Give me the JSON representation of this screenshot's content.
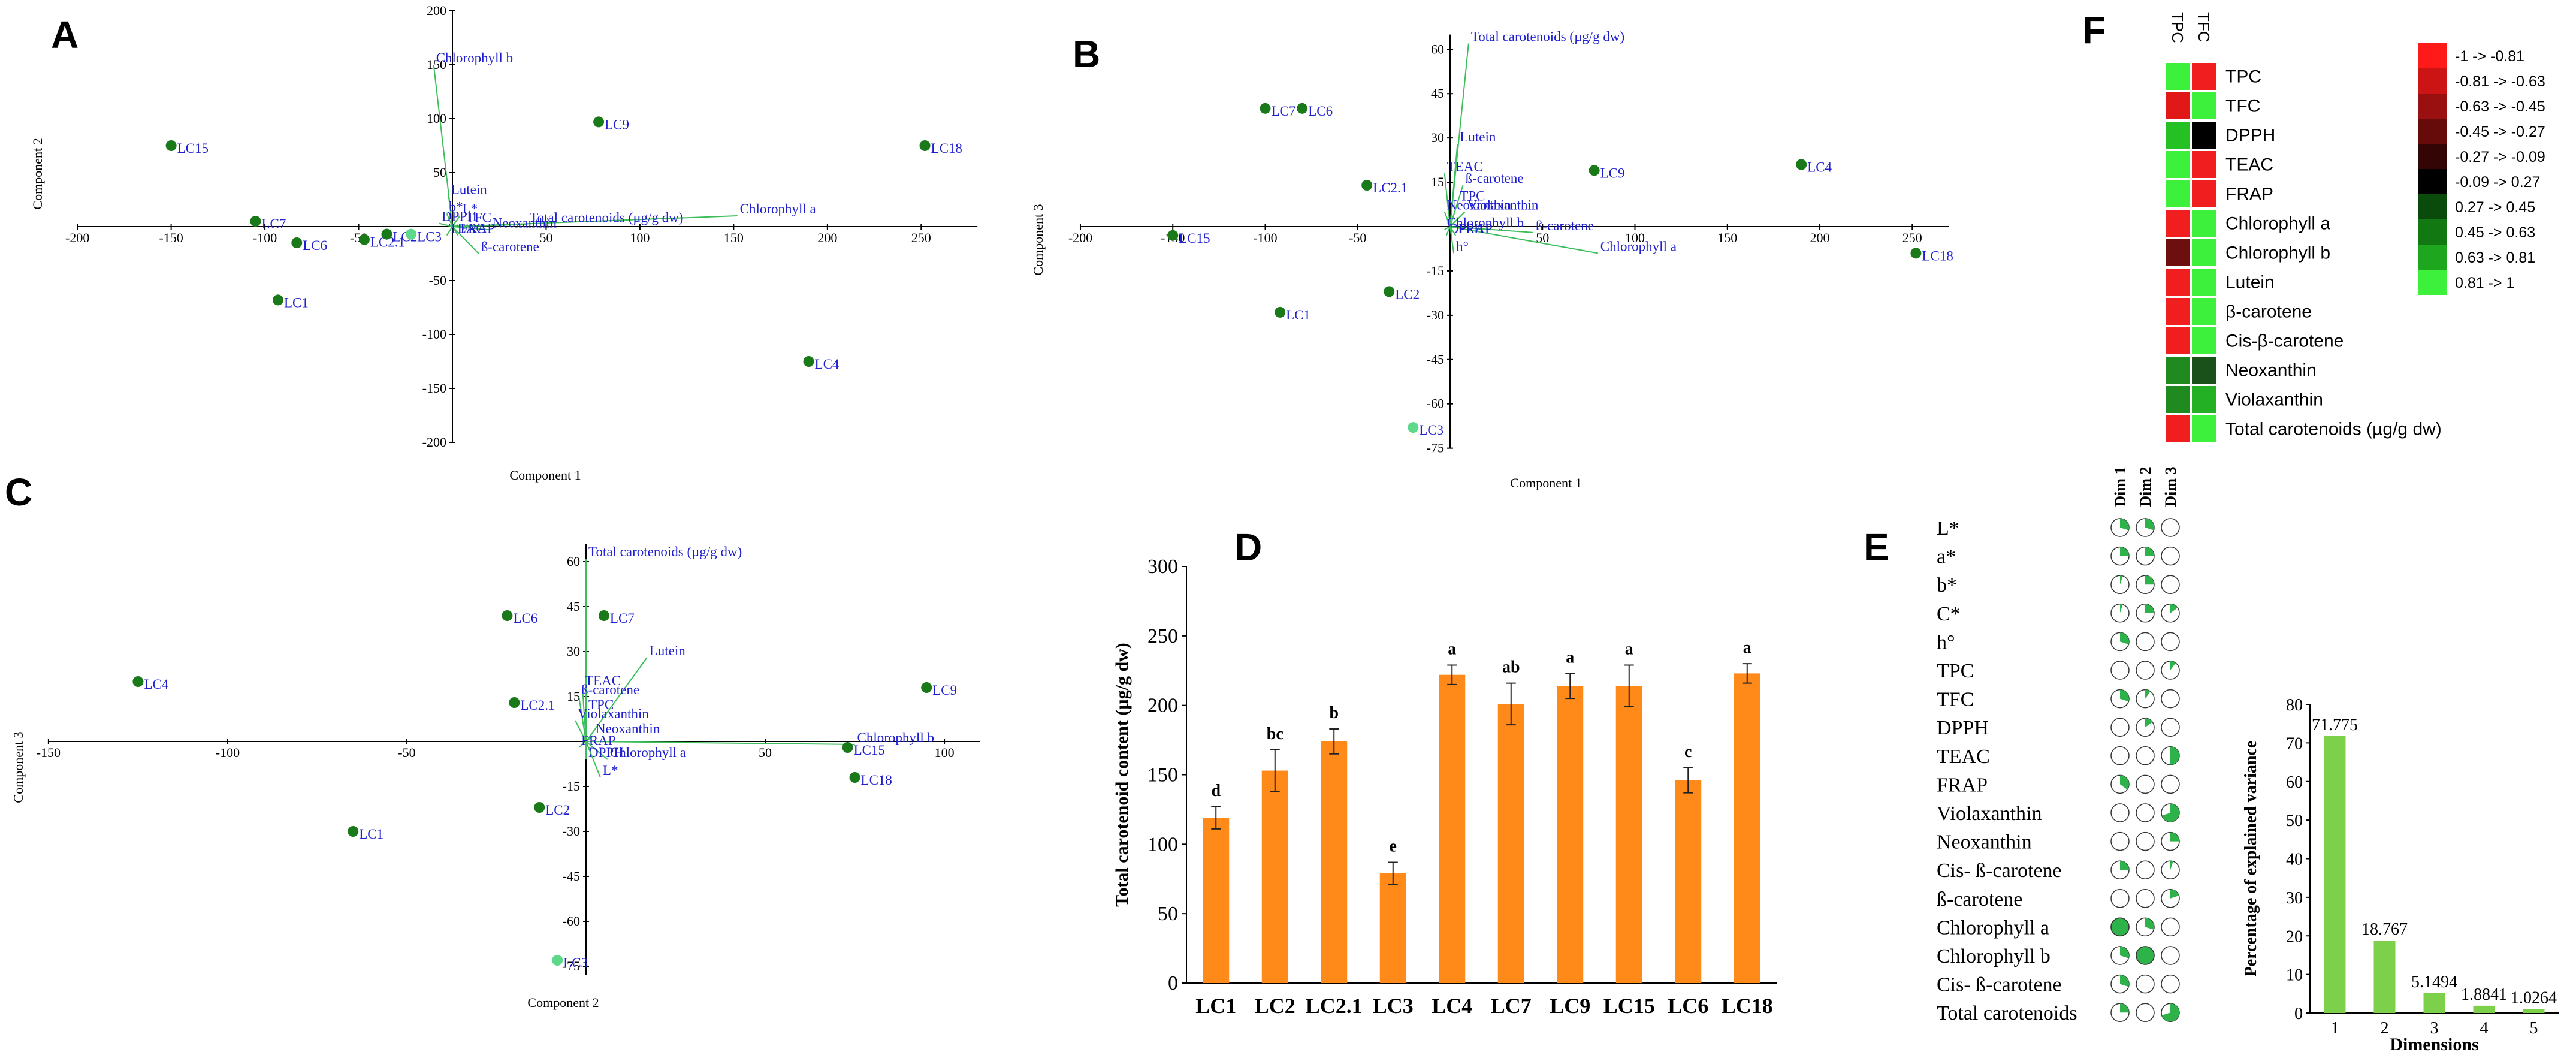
{
  "panels": {
    "A": {
      "letter": "A",
      "xlabel": "Component 1",
      "ylabel": "Component 2",
      "xticks": [
        "-200",
        "-150",
        "-100",
        "-50",
        "50",
        "100",
        "150",
        "200",
        "250"
      ],
      "yticks": [
        "200",
        "150",
        "100",
        "50",
        "-50",
        "-100",
        "-150",
        "-200"
      ]
    },
    "B": {
      "letter": "B",
      "xlabel": "Component 1",
      "ylabel": "Component 3",
      "xticks": [
        "-200",
        "-150",
        "-100",
        "-50",
        "50",
        "100",
        "150",
        "200",
        "250"
      ],
      "yticks": [
        "60",
        "45",
        "30",
        "15",
        "-15",
        "-30",
        "-45",
        "-60",
        "-75"
      ]
    },
    "C": {
      "letter": "C",
      "xlabel": "Component 2",
      "ylabel": "Component 3",
      "xticks": [
        "-150",
        "-100",
        "-50",
        "50",
        "100"
      ],
      "yticks": [
        "60",
        "45",
        "30",
        "15",
        "-15",
        "-30",
        "-45",
        "-60",
        "-75"
      ]
    },
    "D": {
      "letter": "D"
    },
    "E": {
      "letter": "E"
    },
    "F": {
      "letter": "F"
    }
  },
  "chart_data": [
    {
      "id": "A",
      "type": "scatter",
      "title": "",
      "xlabel": "Component 1",
      "ylabel": "Component 2",
      "xlim": [
        -200,
        280
      ],
      "ylim": [
        -200,
        200
      ],
      "points": [
        {
          "label": "LC15",
          "x": -150,
          "y": 75,
          "color": "#1a7a1a"
        },
        {
          "label": "LC7",
          "x": -105,
          "y": 5,
          "color": "#1a7a1a"
        },
        {
          "label": "LC6",
          "x": -83,
          "y": -15,
          "color": "#1a7a1a"
        },
        {
          "label": "LC2.1",
          "x": -47,
          "y": -12,
          "color": "#1a7a1a"
        },
        {
          "label": "LC2",
          "x": -35,
          "y": -7,
          "color": "#1a7a1a"
        },
        {
          "label": "LC3",
          "x": -22,
          "y": -7,
          "color": "#5ed98a"
        },
        {
          "label": "LC1",
          "x": -93,
          "y": -68,
          "color": "#1a7a1a"
        },
        {
          "label": "LC9",
          "x": 78,
          "y": 97,
          "color": "#1a7a1a"
        },
        {
          "label": "LC18",
          "x": 252,
          "y": 75,
          "color": "#1a7a1a"
        },
        {
          "label": "LC4",
          "x": 190,
          "y": -125,
          "color": "#1a7a1a"
        }
      ],
      "loadings": [
        {
          "label": "Chlorophyll b",
          "x": -10,
          "y": 150
        },
        {
          "label": "Lutein",
          "x": -2,
          "y": 28
        },
        {
          "label": "Chlorophyll a",
          "x": 152,
          "y": 10
        },
        {
          "label": "Total carotenoids (µg/g dw)",
          "x": 40,
          "y": 2
        },
        {
          "label": "ß-carotene",
          "x": 14,
          "y": -25
        },
        {
          "label": "DPPH",
          "x": -7,
          "y": 3
        },
        {
          "label": "b*",
          "x": -3,
          "y": 12
        },
        {
          "label": "L*",
          "x": 4,
          "y": 10
        },
        {
          "label": "TFC",
          "x": 6,
          "y": 2
        },
        {
          "label": "Neoxanthin",
          "x": 20,
          "y": -3
        },
        {
          "label": "FRAP",
          "x": 3,
          "y": -8
        },
        {
          "label": "TEAC",
          "x": -3,
          "y": -8
        }
      ]
    },
    {
      "id": "B",
      "type": "scatter",
      "title": "",
      "xlabel": "Component 1",
      "ylabel": "Component 3",
      "xlim": [
        -200,
        270
      ],
      "ylim": [
        -75,
        65
      ],
      "points": [
        {
          "label": "LC7",
          "x": -100,
          "y": 40,
          "color": "#1a7a1a"
        },
        {
          "label": "LC6",
          "x": -80,
          "y": 40,
          "color": "#1a7a1a"
        },
        {
          "label": "LC15",
          "x": -150,
          "y": -3,
          "color": "#1a7a1a"
        },
        {
          "label": "LC2.1",
          "x": -45,
          "y": 14,
          "color": "#1a7a1a"
        },
        {
          "label": "LC1",
          "x": -92,
          "y": -29,
          "color": "#1a7a1a"
        },
        {
          "label": "LC2",
          "x": -33,
          "y": -22,
          "color": "#1a7a1a"
        },
        {
          "label": "LC3",
          "x": -20,
          "y": -68,
          "color": "#5ed98a"
        },
        {
          "label": "LC9",
          "x": 78,
          "y": 19,
          "color": "#1a7a1a"
        },
        {
          "label": "LC4",
          "x": 190,
          "y": 21,
          "color": "#1a7a1a"
        },
        {
          "label": "LC18",
          "x": 252,
          "y": -9,
          "color": "#1a7a1a"
        }
      ],
      "loadings": [
        {
          "label": "Total carotenoids (µg/g dw)",
          "x": 10,
          "y": 62
        },
        {
          "label": "Lutein",
          "x": 4,
          "y": 28
        },
        {
          "label": "TEAC",
          "x": -3,
          "y": 18
        },
        {
          "label": "ß-carotene",
          "x": 7,
          "y": 14
        },
        {
          "label": "TPC",
          "x": 4,
          "y": 8
        },
        {
          "label": "Neoxanthin",
          "x": -3,
          "y": 5
        },
        {
          "label": "Violaxanthin",
          "x": 8,
          "y": 5
        },
        {
          "label": "Chlorophyll b",
          "x": -3,
          "y": -1
        },
        {
          "label": "Chlorophyll a",
          "x": 80,
          "y": -9
        },
        {
          "label": "ß-carotene",
          "x": 45,
          "y": -2
        },
        {
          "label": "DPPH",
          "x": -2,
          "y": -3
        },
        {
          "label": "FRAP",
          "x": 3,
          "y": -3
        },
        {
          "label": "h°",
          "x": 2,
          "y": -9
        }
      ]
    },
    {
      "id": "C",
      "type": "scatter",
      "title": "",
      "xlabel": "Component 2",
      "ylabel": "Component 3",
      "xlim": [
        -150,
        110
      ],
      "ylim": [
        -78,
        66
      ],
      "points": [
        {
          "label": "LC4",
          "x": -125,
          "y": 20,
          "color": "#1a7a1a"
        },
        {
          "label": "LC6",
          "x": -22,
          "y": 42,
          "color": "#1a7a1a"
        },
        {
          "label": "LC7",
          "x": 5,
          "y": 42,
          "color": "#1a7a1a"
        },
        {
          "label": "LC2.1",
          "x": -20,
          "y": 13,
          "color": "#1a7a1a"
        },
        {
          "label": "LC1",
          "x": -65,
          "y": -30,
          "color": "#1a7a1a"
        },
        {
          "label": "LC2",
          "x": -13,
          "y": -22,
          "color": "#1a7a1a"
        },
        {
          "label": "LC3",
          "x": -8,
          "y": -73,
          "color": "#5ed98a"
        },
        {
          "label": "LC9",
          "x": 95,
          "y": 18,
          "color": "#1a7a1a"
        },
        {
          "label": "LC15",
          "x": 73,
          "y": -2,
          "color": "#1a7a1a"
        },
        {
          "label": "LC18",
          "x": 75,
          "y": -12,
          "color": "#1a7a1a"
        }
      ],
      "loadings": [
        {
          "label": "Total carotenoids (µg/g dw)",
          "x": 0,
          "y": 61
        },
        {
          "label": "Lutein",
          "x": 17,
          "y": 28
        },
        {
          "label": "TEAC",
          "x": -1,
          "y": 18
        },
        {
          "label": "ß-carotene",
          "x": -2,
          "y": 15
        },
        {
          "label": "TPC",
          "x": 0,
          "y": 10
        },
        {
          "label": "Violaxanthin",
          "x": -3,
          "y": 7
        },
        {
          "label": "Neoxanthin",
          "x": 2,
          "y": 2
        },
        {
          "label": "Chlorophyll b",
          "x": 75,
          "y": -1
        },
        {
          "label": "FRAP",
          "x": -2,
          "y": -2
        },
        {
          "label": "Chlorophyll a",
          "x": 6,
          "y": -6
        },
        {
          "label": "DPPH",
          "x": 0,
          "y": -6
        },
        {
          "label": "L*",
          "x": 4,
          "y": -12
        }
      ]
    },
    {
      "id": "D",
      "type": "bar",
      "title": "",
      "xlabel": "",
      "ylabel": "Total carotenoid content (µg/g dw)",
      "ylim": [
        0,
        300
      ],
      "yticks": [
        0,
        50,
        100,
        150,
        200,
        250,
        300
      ],
      "categories": [
        "LC1",
        "LC2",
        "LC2.1",
        "LC3",
        "LC4",
        "LC7",
        "LC9",
        "LC15",
        "LC6",
        "LC18"
      ],
      "values": [
        119,
        153,
        174,
        79,
        222,
        201,
        214,
        214,
        146,
        223
      ],
      "errors": [
        8,
        15,
        9,
        8,
        7,
        15,
        9,
        15,
        9,
        7
      ],
      "letters": [
        "d",
        "bc",
        "b",
        "e",
        "a",
        "ab",
        "a",
        "a",
        "c",
        "a"
      ]
    },
    {
      "id": "scree",
      "type": "bar",
      "title": "",
      "xlabel": "Dimensions",
      "ylabel": "Percentage of explained variance",
      "ylim": [
        0,
        80
      ],
      "yticks": [
        0,
        10,
        20,
        30,
        40,
        50,
        60,
        70,
        80
      ],
      "categories": [
        "1",
        "2",
        "3",
        "4",
        "5"
      ],
      "values": [
        71.775,
        18.767,
        5.1494,
        1.8841,
        1.0264
      ],
      "labels": [
        "71.775",
        "18.767",
        "5.1494",
        "1.8841",
        "1.0264"
      ]
    },
    {
      "id": "E",
      "type": "table",
      "title": "",
      "columns": [
        "Dim 1",
        "Dim 2",
        "Dim 3"
      ],
      "rows": [
        {
          "label": "L*",
          "values": [
            0.3,
            0.3,
            0
          ]
        },
        {
          "label": "a*",
          "values": [
            0.25,
            0.25,
            0
          ]
        },
        {
          "label": "b*",
          "values": [
            0.05,
            0.25,
            0
          ]
        },
        {
          "label": "C*",
          "values": [
            0.05,
            0.25,
            0.15
          ]
        },
        {
          "label": "h°",
          "values": [
            0.3,
            0,
            0
          ]
        },
        {
          "label": "TPC",
          "values": [
            0,
            0,
            0.1
          ]
        },
        {
          "label": "TFC",
          "values": [
            0.3,
            0.1,
            0
          ]
        },
        {
          "label": "DPPH",
          "values": [
            0,
            0.15,
            0
          ]
        },
        {
          "label": "TEAC",
          "values": [
            0,
            0,
            0.5
          ]
        },
        {
          "label": "FRAP",
          "values": [
            0.35,
            0,
            0
          ]
        },
        {
          "label": "Violaxanthin",
          "values": [
            0,
            0,
            0.7
          ]
        },
        {
          "label": "Neoxanthin",
          "values": [
            0,
            0,
            0.25
          ]
        },
        {
          "label": "Cis- ß-carotene",
          "values": [
            0.25,
            0,
            0.05
          ]
        },
        {
          "label": "ß-carotene",
          "values": [
            0,
            0,
            0.2
          ]
        },
        {
          "label": "Chlorophyll a",
          "values": [
            1.0,
            0.3,
            0
          ]
        },
        {
          "label": "Chlorophyll b",
          "values": [
            0.3,
            1.0,
            0
          ]
        },
        {
          "label": "Cis- ß-carotene",
          "values": [
            0.3,
            0,
            0
          ]
        },
        {
          "label": "Total carotenoids",
          "values": [
            0.25,
            0,
            0.7
          ]
        }
      ]
    },
    {
      "id": "F",
      "type": "heatmap",
      "title": "",
      "columns": [
        "TPC",
        "TFC"
      ],
      "rows": [
        "TPC",
        "TFC",
        "DPPH",
        "TEAC",
        "FRAP",
        "Chlorophyll a",
        "Chlorophyll b",
        "Lutein",
        "β-carotene",
        "Cis-β-carotene",
        "Neoxanthin",
        "Violaxanthin",
        "Total carotenoids (µg/g dw)"
      ],
      "colors": [
        [
          "#3cf03c",
          "#f01e1e"
        ],
        [
          "#e01818",
          "#3cf03c"
        ],
        [
          "#24c024",
          "#000000"
        ],
        [
          "#3cf03c",
          "#f01e1e"
        ],
        [
          "#3cf03c",
          "#f01e1e"
        ],
        [
          "#f01e1e",
          "#3cf03c"
        ],
        [
          "#6e0f0f",
          "#3cf03c"
        ],
        [
          "#f01e1e",
          "#3cf03c"
        ],
        [
          "#f01e1e",
          "#3cf03c"
        ],
        [
          "#f01e1e",
          "#3cf03c"
        ],
        [
          "#1f8a1f",
          "#1a501a"
        ],
        [
          "#1f8a1f",
          "#24b024"
        ],
        [
          "#f01e1e",
          "#3cf03c"
        ]
      ],
      "legend": [
        {
          "label": "-1 -> -0.81",
          "color": "#ff1a1a"
        },
        {
          "label": "-0.81 -> -0.63",
          "color": "#cc1414"
        },
        {
          "label": "-0.63 -> -0.45",
          "color": "#9a0f0f"
        },
        {
          "label": "-0.45 -> -0.27",
          "color": "#660a0a"
        },
        {
          "label": "-0.27 -> -0.09",
          "color": "#330505"
        },
        {
          "label": "-0.09 -> 0.27",
          "color": "#000000"
        },
        {
          "label": "0.27 -> 0.45",
          "color": "#0a4a0a"
        },
        {
          "label": "0.45 -> 0.63",
          "color": "#127812"
        },
        {
          "label": "0.63 -> 0.81",
          "color": "#1fa61f"
        },
        {
          "label": "0.81 -> 1",
          "color": "#3cf03c"
        }
      ]
    }
  ]
}
